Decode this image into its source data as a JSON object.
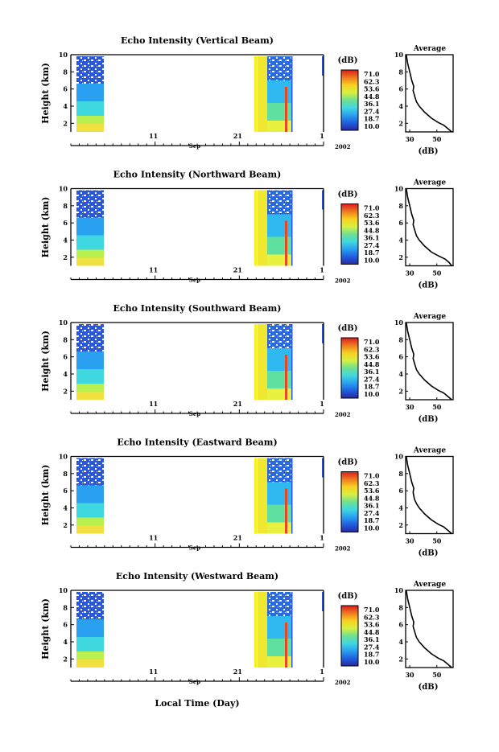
{
  "figure": {
    "xlabel": "Local Time (Day)"
  },
  "colorbar": {
    "unit": "(dB)",
    "ticks": [
      "71.0",
      "62.3",
      "53.6",
      "44.8",
      "36.1",
      "27.4",
      "18.7",
      "10.0"
    ],
    "colors": [
      "#2828a0",
      "#1f5fe0",
      "#2aa0f0",
      "#40d8e0",
      "#70e090",
      "#d8f040",
      "#f8d020",
      "#f07820",
      "#d81e1e"
    ]
  },
  "colors": {
    "axis": "#000000",
    "background": "#ffffff",
    "profile": "#000000"
  },
  "chart_data": [
    {
      "type": "heatmap",
      "title": "Echo Intensity (Vertical Beam)",
      "ylabel": "Height (km)",
      "ylim": [
        1,
        10
      ],
      "yticks": [
        "10",
        "8",
        "6",
        "4",
        "2"
      ],
      "xticks": [
        "11",
        "21",
        "1"
      ],
      "month_label": "Sep",
      "year_label": "2002",
      "profile": {
        "title": "Average",
        "xlabel": "(dB)",
        "xticks": [
          "30",
          "50"
        ],
        "xlim": [
          27,
          62
        ],
        "ylim": [
          1,
          10
        ],
        "x": [
          27.5,
          28.5,
          30,
          31.5,
          33,
          32.5,
          34,
          35,
          37,
          41,
          46,
          51,
          55,
          58,
          61
        ],
        "y": [
          10,
          9,
          8,
          7,
          6.3,
          5.8,
          5,
          4.5,
          4,
          3.3,
          2.6,
          2.1,
          1.8,
          1.4,
          1
        ]
      }
    },
    {
      "type": "heatmap",
      "title": "Echo Intensity (Northward Beam)",
      "ylabel": "Height (km)",
      "ylim": [
        1,
        10
      ],
      "yticks": [
        "10",
        "8",
        "6",
        "4",
        "2"
      ],
      "xticks": [
        "11",
        "21",
        "1"
      ],
      "month_label": "Sep",
      "year_label": "2002",
      "profile": {
        "title": "Average",
        "xlabel": "(dB)",
        "xticks": [
          "30",
          "50"
        ],
        "xlim": [
          27,
          62
        ],
        "ylim": [
          1,
          10
        ],
        "x": [
          27.5,
          28.5,
          30,
          31.5,
          33,
          32.5,
          34,
          35,
          37,
          41,
          46,
          52,
          56,
          59,
          61
        ],
        "y": [
          10,
          9,
          8,
          7,
          6.3,
          5.8,
          5,
          4.5,
          4,
          3.3,
          2.6,
          2.1,
          1.8,
          1.4,
          1
        ]
      }
    },
    {
      "type": "heatmap",
      "title": "Echo Intensity (Southward Beam)",
      "ylabel": "Height (km)",
      "ylim": [
        1,
        10
      ],
      "yticks": [
        "10",
        "8",
        "6",
        "4",
        "2"
      ],
      "xticks": [
        "11",
        "21",
        "1"
      ],
      "month_label": "Sep",
      "year_label": "2002",
      "profile": {
        "title": "Average",
        "xlabel": "(dB)",
        "xticks": [
          "30",
          "50"
        ],
        "xlim": [
          27,
          62
        ],
        "ylim": [
          1,
          10
        ],
        "x": [
          27.5,
          28.5,
          30,
          31.5,
          33,
          32.5,
          34,
          35,
          37,
          41,
          46,
          51,
          55,
          58,
          61
        ],
        "y": [
          10,
          9,
          8,
          7,
          6.3,
          5.8,
          5,
          4.5,
          4,
          3.3,
          2.6,
          2.1,
          1.8,
          1.4,
          1
        ]
      }
    },
    {
      "type": "heatmap",
      "title": "Echo Intensity (Eastward Beam)",
      "ylabel": "Height (km)",
      "ylim": [
        1,
        10
      ],
      "yticks": [
        "10",
        "8",
        "6",
        "4",
        "2"
      ],
      "xticks": [
        "11",
        "21",
        "1"
      ],
      "month_label": "Sep",
      "year_label": "2002",
      "profile": {
        "title": "Average",
        "xlabel": "(dB)",
        "xticks": [
          "30",
          "50"
        ],
        "xlim": [
          27,
          62
        ],
        "ylim": [
          1,
          10
        ],
        "x": [
          27.5,
          28.5,
          30,
          31.5,
          33,
          32.5,
          33.5,
          35,
          37,
          41,
          46,
          51,
          55,
          58,
          61
        ],
        "y": [
          10,
          9,
          8,
          7,
          6.3,
          5.8,
          5,
          4.5,
          4,
          3.3,
          2.6,
          2.1,
          1.8,
          1.4,
          1
        ]
      }
    },
    {
      "type": "heatmap",
      "title": "Echo Intensity (Westward Beam)",
      "ylabel": "Height (km)",
      "ylim": [
        1,
        10
      ],
      "yticks": [
        "10",
        "8",
        "6",
        "4",
        "2"
      ],
      "xticks": [
        "11",
        "21",
        "1"
      ],
      "month_label": "Sep",
      "year_label": "2002",
      "profile": {
        "title": "Average",
        "xlabel": "(dB)",
        "xticks": [
          "30",
          "50"
        ],
        "xlim": [
          27,
          62
        ],
        "ylim": [
          1,
          10
        ],
        "x": [
          27.5,
          28.5,
          30,
          31.5,
          33,
          32.5,
          34,
          35,
          37,
          41,
          46,
          51,
          55,
          58,
          61
        ],
        "y": [
          10,
          9,
          8,
          7,
          6.3,
          5.8,
          5,
          4.5,
          4,
          3.3,
          2.6,
          2.1,
          1.8,
          1.4,
          1
        ]
      }
    }
  ]
}
